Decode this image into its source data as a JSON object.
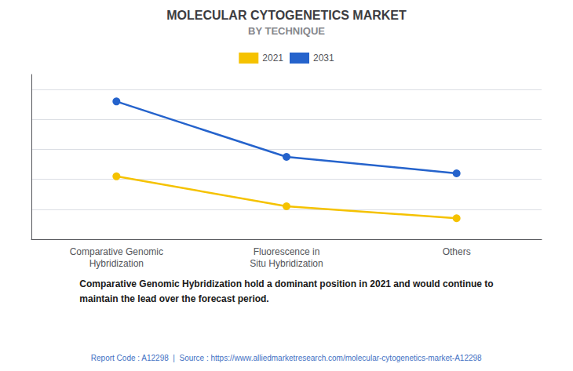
{
  "chart_data": {
    "type": "line",
    "title": "MOLECULAR CYTOGENETICS MARKET",
    "subtitle": "BY TECHNIQUE",
    "categories": [
      "Comparative Genomic\nHybridization",
      "Fluorescence in\nSitu Hybridization",
      "Others"
    ],
    "series": [
      {
        "name": "2021",
        "color": "#f5c200",
        "values": [
          0.42,
          0.22,
          0.14
        ]
      },
      {
        "name": "2031",
        "color": "#2563cc",
        "values": [
          0.92,
          0.55,
          0.44
        ]
      }
    ],
    "ylim": [
      0.0,
      1.1
    ],
    "yticks": [
      0.2,
      0.4,
      0.6,
      0.8,
      1.0
    ],
    "grid": true,
    "legend": "top",
    "tick_labels": "x",
    "marker": "circle",
    "annotations": [
      "Comparative Genomic Hybridization hold a dominant position in 2021 and would continue to\nmaintain the lead over the forecast period.",
      "Report Code : A12298  |  Source : https://www.alliedmarketresearch.com/molecular-cytogenetics-market-A12298"
    ]
  }
}
